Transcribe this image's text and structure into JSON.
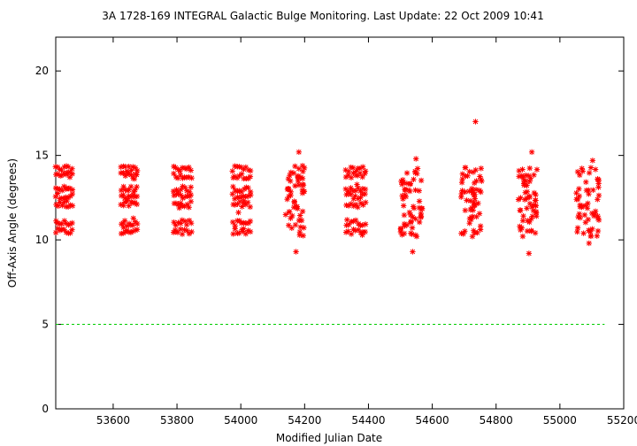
{
  "chart_data": {
    "type": "scatter",
    "title": "3A 1728-169   INTEGRAL Galactic Bulge Monitoring.  Last Update: 22 Oct 2009 10:41",
    "xlabel": "Modified Julian Date",
    "ylabel": "Off-Axis Angle (degrees)",
    "xlim": [
      53420,
      55200
    ],
    "ylim": [
      0,
      22
    ],
    "x_ticks": [
      53600,
      53800,
      54000,
      54200,
      54400,
      54600,
      54800,
      55000,
      55200
    ],
    "x_tick_labels": [
      "53600",
      "53800",
      "54000",
      "54200",
      "54400",
      "54600",
      "54800",
      "55000",
      "55200"
    ],
    "y_ticks": [
      0,
      5,
      10,
      15,
      20
    ],
    "y_tick_labels": [
      "0",
      "5",
      "10",
      "15",
      "20"
    ],
    "grid": false,
    "marker": "asterisk",
    "marker_color": "#ff0000",
    "reference_line": {
      "y": 5,
      "x_range": [
        53420,
        55140
      ],
      "color": "#00cc00",
      "style": "dashed"
    },
    "visibility_windows": [
      {
        "x_start": 53420,
        "x_end": 53472,
        "y_min": 10.4,
        "y_max": 14.3,
        "pattern": "bands"
      },
      {
        "x_start": 53625,
        "x_end": 53675,
        "y_min": 10.4,
        "y_max": 14.3,
        "pattern": "bands"
      },
      {
        "x_start": 53790,
        "x_end": 53845,
        "y_min": 10.4,
        "y_max": 14.3,
        "pattern": "bands"
      },
      {
        "x_start": 53975,
        "x_end": 54030,
        "y_min": 10.4,
        "y_max": 14.3,
        "pattern": "bands"
      },
      {
        "x_start": 54140,
        "x_end": 54200,
        "y_min": 9.3,
        "y_max": 15.2,
        "pattern": "scatter"
      },
      {
        "x_start": 54330,
        "x_end": 54390,
        "y_min": 9.3,
        "y_max": 14.8,
        "pattern": "bands"
      },
      {
        "x_start": 54500,
        "x_end": 54570,
        "y_min": 9.3,
        "y_max": 14.8,
        "pattern": "scatter"
      },
      {
        "x_start": 54690,
        "x_end": 54755,
        "y_min": 10.2,
        "y_max": 17.0,
        "pattern": "scatter"
      },
      {
        "x_start": 54870,
        "x_end": 54930,
        "y_min": 9.2,
        "y_max": 15.2,
        "pattern": "scatter"
      },
      {
        "x_start": 55050,
        "x_end": 55125,
        "y_min": 9.8,
        "y_max": 14.7,
        "pattern": "scatter"
      }
    ]
  }
}
